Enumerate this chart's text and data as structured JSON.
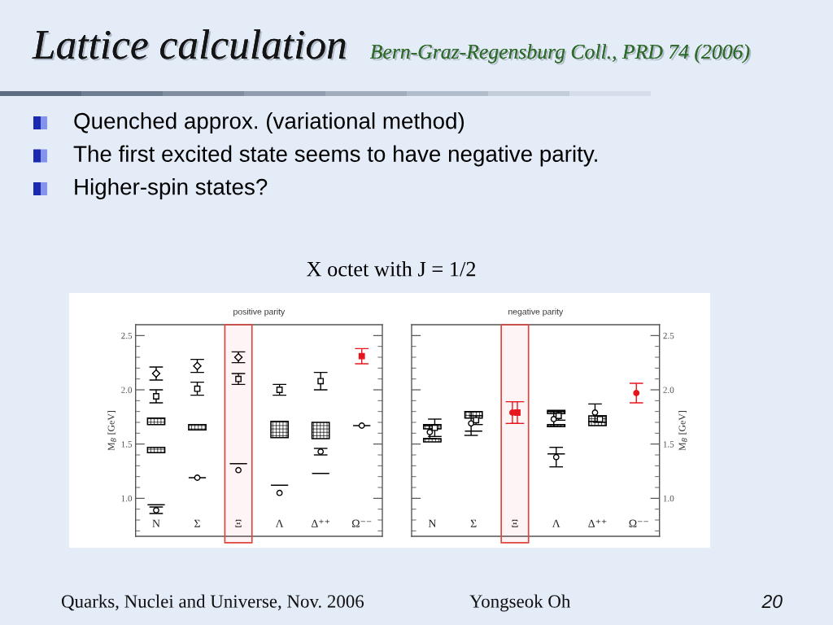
{
  "chart_data": [
    {
      "type": "other",
      "title": "Lattice calculation",
      "subtitle": "Bern-Graz-Regensburg Coll., PRD 74 (2006)",
      "annotations": [
        "Quenched approx. (variational method)",
        "The first excited state seems to have negative parity.",
        "Higher-spin states?"
      ]
    },
    {
      "type": "other",
      "title": "X octet with J = 1/2"
    },
    {
      "type": "scatter",
      "title": "positive parity",
      "ylabel": "M$_{B}$ [GeV]",
      "categories": [
        "N",
        "Σ",
        "Ξ",
        "Λ",
        "Δ⁺⁺",
        "Ω⁻⁻"
      ],
      "ylim": [
        0.65,
        2.6
      ],
      "yticks": [
        {
          "value": 0.7,
          "label": null
        },
        {
          "value": 0.8,
          "label": null
        },
        {
          "value": 0.9,
          "label": null
        },
        {
          "value": 1.0,
          "label": "1.0"
        },
        {
          "value": 1.1,
          "label": null
        },
        {
          "value": 1.2,
          "label": null
        },
        {
          "value": 1.3,
          "label": null
        },
        {
          "value": 1.4,
          "label": null
        },
        {
          "value": 1.5,
          "label": "1.5"
        },
        {
          "value": 1.6,
          "label": null
        },
        {
          "value": 1.7,
          "label": null
        },
        {
          "value": 1.8,
          "label": null
        },
        {
          "value": 1.9,
          "label": null
        },
        {
          "value": 2.0,
          "label": "2.0"
        },
        {
          "value": 2.1,
          "label": null
        },
        {
          "value": 2.2,
          "label": null
        },
        {
          "value": 2.3,
          "label": null
        },
        {
          "value": 2.4,
          "label": null
        },
        {
          "value": 2.5,
          "label": "2.5"
        }
      ],
      "bands": [
        {
          "axis": "x",
          "from": "Ξ",
          "to": "Ξ",
          "color": "#e0443c"
        }
      ],
      "series": [
        {
          "type": "bar",
          "color": "#000000",
          "base": [
            1.68,
            1.63,
            null,
            1.56,
            1.55,
            null
          ],
          "values": [
            0.06,
            0.05,
            null,
            0.15,
            0.15,
            null
          ]
        },
        {
          "type": "bar",
          "color": "#000000",
          "base": [
            1.42,
            null,
            null,
            null,
            null,
            null
          ],
          "values": [
            0.05,
            null,
            null,
            null,
            null,
            null
          ]
        },
        {
          "type": "bar",
          "color": "#000000",
          "base": [
            0.94,
            1.19,
            1.32,
            1.12,
            1.23,
            1.67
          ],
          "values": [
            0,
            0,
            0,
            0,
            0,
            0
          ]
        },
        {
          "marker": "circle",
          "color": "#000000",
          "values": [
            0.89,
            1.19,
            1.26,
            1.05,
            1.43,
            1.67
          ],
          "errors": [
            0.03,
            null,
            null,
            null,
            0.03,
            null
          ]
        },
        {
          "marker": "square",
          "colors": [
            "#000000",
            "#000000",
            "#000000",
            "#000000",
            "#000000",
            "#e8141c"
          ],
          "values": [
            1.94,
            2.01,
            2.1,
            2.0,
            2.08,
            2.31
          ],
          "errors": [
            0.06,
            0.06,
            0.05,
            0.05,
            0.08,
            0.07
          ]
        },
        {
          "marker": "diamond",
          "color": "#000000",
          "values": [
            2.15,
            2.22,
            2.3,
            null,
            null,
            null
          ],
          "errors": [
            0.06,
            0.06,
            0.05,
            null,
            null,
            null
          ]
        }
      ]
    },
    {
      "type": "scatter",
      "title": "negative parity",
      "ylabel": "M$_{B}$ [GeV]",
      "categories": [
        "N",
        "Σ",
        "Ξ",
        "Λ",
        "Δ⁺⁺",
        "Ω⁻⁻"
      ],
      "ylim": [
        0.65,
        2.6
      ],
      "yticks": [
        {
          "value": 0.7,
          "label": null
        },
        {
          "value": 0.8,
          "label": null
        },
        {
          "value": 0.9,
          "label": null
        },
        {
          "value": 1.0,
          "label": "1.0"
        },
        {
          "value": 1.1,
          "label": null
        },
        {
          "value": 1.2,
          "label": null
        },
        {
          "value": 1.3,
          "label": null
        },
        {
          "value": 1.4,
          "label": null
        },
        {
          "value": 1.5,
          "label": "1.5"
        },
        {
          "value": 1.6,
          "label": null
        },
        {
          "value": 1.7,
          "label": null
        },
        {
          "value": 1.8,
          "label": null
        },
        {
          "value": 1.9,
          "label": null
        },
        {
          "value": 2.0,
          "label": "2.0"
        },
        {
          "value": 2.1,
          "label": null
        },
        {
          "value": 2.2,
          "label": null
        },
        {
          "value": 2.3,
          "label": null
        },
        {
          "value": 2.4,
          "label": null
        },
        {
          "value": 2.5,
          "label": "2.5"
        }
      ],
      "bands": [
        {
          "axis": "x",
          "from": "Ξ",
          "to": "Ξ",
          "color": "#e0443c"
        }
      ],
      "series": [
        {
          "type": "bar",
          "color": "#000000",
          "base": [
            1.64,
            1.74,
            null,
            1.78,
            1.67,
            null
          ],
          "values": [
            0.04,
            0.06,
            null,
            0.03,
            0.09,
            null
          ]
        },
        {
          "type": "bar",
          "color": "#000000",
          "base": [
            1.52,
            null,
            null,
            1.66,
            null,
            null
          ],
          "values": [
            0.03,
            null,
            null,
            0.02,
            null,
            null
          ]
        },
        {
          "type": "bar",
          "color": "#000000",
          "base": [
            null,
            1.62,
            null,
            1.41,
            null,
            null
          ],
          "values": [
            null,
            0,
            null,
            0,
            null,
            null
          ]
        },
        {
          "marker": "circle",
          "colors": [
            "#000000",
            "#000000",
            "#e8141c",
            "#000000",
            "#000000",
            "#e8141c"
          ],
          "values": [
            1.61,
            1.69,
            1.79,
            1.73,
            1.79,
            1.97
          ],
          "errors": [
            0.06,
            0.11,
            0.1,
            0.07,
            0.08,
            0.09
          ]
        },
        {
          "marker": "circle",
          "color": "#000000",
          "values": [
            null,
            null,
            null,
            1.38,
            null,
            null
          ],
          "errors": [
            null,
            null,
            null,
            0.09,
            null,
            null
          ]
        },
        {
          "marker": "square",
          "colors": [
            "#000000",
            "#000000",
            "#e8141c",
            "#000000",
            "#000000",
            "#000000"
          ],
          "values": [
            1.65,
            1.72,
            1.79,
            1.76,
            1.73,
            null
          ],
          "errors": [
            0.08,
            0.04,
            0.1,
            0.04,
            0.03,
            null
          ]
        }
      ]
    },
    {
      "type": "other",
      "annotations": [
        "Quarks, Nuclei and Universe, Nov. 2006",
        "Yongseok Oh",
        "20"
      ]
    }
  ]
}
